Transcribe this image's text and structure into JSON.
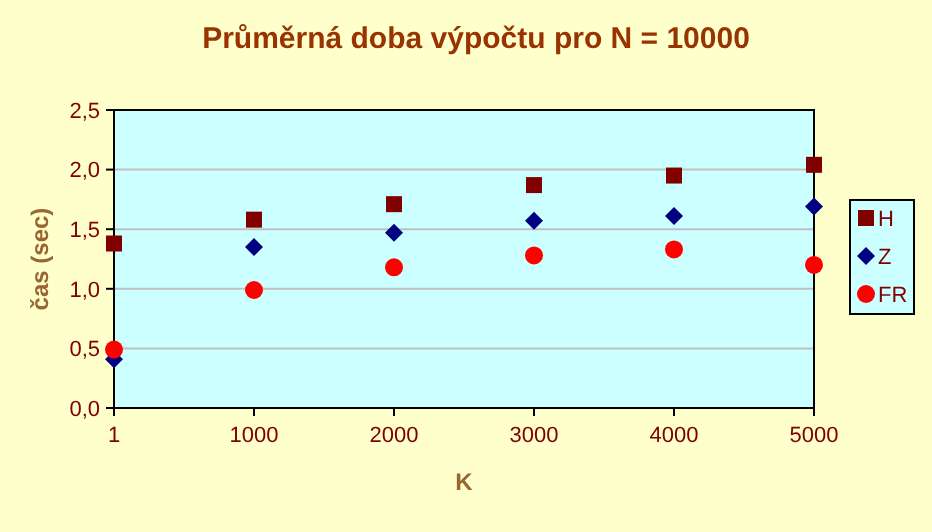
{
  "chart_data": {
    "type": "scatter",
    "title": "Průměrná doba výpočtu pro N = 10000",
    "xlabel": "K",
    "ylabel": "čas (sec)",
    "categories": [
      "1",
      "1000",
      "2000",
      "3000",
      "4000",
      "5000"
    ],
    "series": [
      {
        "name": "H",
        "color": "#800000",
        "marker": "square",
        "values": [
          1.38,
          1.58,
          1.71,
          1.87,
          1.95,
          2.04
        ]
      },
      {
        "name": "Z",
        "color": "#000080",
        "marker": "diamond",
        "values": [
          0.41,
          1.35,
          1.47,
          1.57,
          1.61,
          1.69
        ]
      },
      {
        "name": "FR",
        "color": "#ff0000",
        "marker": "circle",
        "values": [
          0.49,
          0.99,
          1.18,
          1.28,
          1.33,
          1.2
        ]
      }
    ],
    "ylim": [
      0,
      2.5
    ],
    "yticks": [
      {
        "value": 0,
        "label": "0,0"
      },
      {
        "value": 0.5,
        "label": "0,5"
      },
      {
        "value": 1,
        "label": "1,0"
      },
      {
        "value": 1.5,
        "label": "1,5"
      },
      {
        "value": 2,
        "label": "2,0"
      },
      {
        "value": 2.5,
        "label": "2,5"
      }
    ],
    "grid": "y",
    "legend": "right"
  }
}
